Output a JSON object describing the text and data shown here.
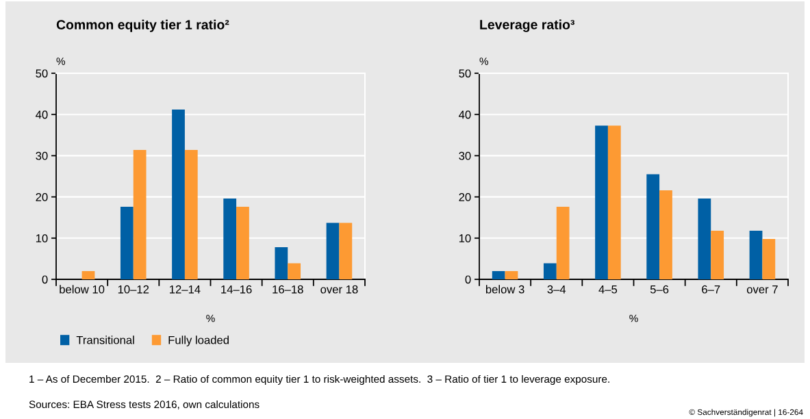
{
  "chart_data": [
    {
      "type": "bar",
      "title": "Common equity tier 1 ratio²",
      "ylabel": "%",
      "xlabel": "%",
      "categories": [
        "below 10",
        "10–12",
        "12–14",
        "14–16",
        "16–18",
        "over 18"
      ],
      "series": [
        {
          "name": "Transitional",
          "color": "#0060a5",
          "values": [
            0,
            17.6,
            41.2,
            19.6,
            7.8,
            13.7
          ]
        },
        {
          "name": "Fully loaded",
          "color": "#fd9a33",
          "values": [
            2.0,
            31.4,
            31.4,
            17.6,
            3.9,
            13.7
          ]
        }
      ],
      "ylim": [
        0,
        50
      ],
      "yticks": [
        0,
        10,
        20,
        30,
        40,
        50
      ],
      "grid": "y",
      "legend": "bottom",
      "annotations": [
        "1 – As of December 2015.  2 – Ratio of common equity tier 1 to risk-weighted assets.  3 – Ratio of tier 1 to leverage exposure.",
        "Sources: EBA Stress tests 2016, own calculations",
        "© Sachverständigenrat | 16-264"
      ]
    },
    {
      "type": "bar",
      "title": "Leverage ratio³",
      "ylabel": "%",
      "xlabel": "%",
      "categories": [
        "below 3",
        "3–4",
        "4–5",
        "5–6",
        "6–7",
        "over 7"
      ],
      "series": [
        {
          "color": "#0060a5",
          "values": [
            2.0,
            3.9,
            37.3,
            25.5,
            19.6,
            11.8
          ]
        },
        {
          "color": "#fd9a33",
          "values": [
            2.0,
            17.6,
            37.3,
            21.6,
            11.8,
            9.8
          ]
        }
      ],
      "ylim": [
        0,
        50
      ],
      "yticks": [
        0,
        10,
        20,
        30,
        40,
        50
      ],
      "grid": "y"
    }
  ]
}
